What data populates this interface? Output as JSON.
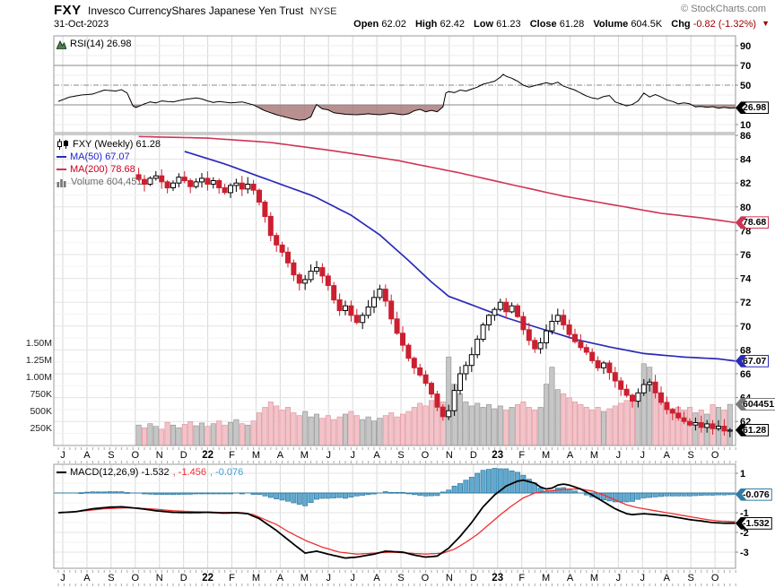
{
  "header": {
    "symbol": "FXY",
    "name": "Invesco CurrencyShares Japanese Yen Trust",
    "exchange": "NYSE",
    "copyright": "© StockCharts.com",
    "date": "31-Oct-2023",
    "open_label": "Open",
    "open": "62.02",
    "high_label": "High",
    "high": "62.42",
    "low_label": "Low",
    "low": "61.23",
    "close_label": "Close",
    "close": "61.28",
    "volume_label": "Volume",
    "volume": "604.5K",
    "chg_label": "Chg",
    "chg": "-0.82 (-1.32%)"
  },
  "legends": {
    "rsi": "RSI(14) 26.98",
    "price_main": "FXY (Weekly) 61.28",
    "ma50": "MA(50) 67.07",
    "ma200": "MA(200) 78.68",
    "volume": "Volume 604,451",
    "macd_main": "MACD(12,26,9) -1.532",
    "macd_signal": ", -1.456",
    "macd_hist": ", -0.076"
  },
  "axis": {
    "rsi_ticks": [
      90,
      70,
      50,
      10
    ],
    "price_ticks": [
      86,
      84,
      82,
      80,
      78,
      76,
      74,
      72,
      70,
      68,
      66,
      64,
      62
    ],
    "vol_ticks": [
      [
        "1.50M",
        1500
      ],
      [
        "1.25M",
        1250
      ],
      [
        "1.00M",
        1000
      ],
      [
        "750K",
        750
      ],
      [
        "500K",
        500
      ],
      [
        "250K",
        250
      ]
    ],
    "macd_ticks": [
      1,
      -1,
      -2,
      -3
    ],
    "months": [
      "J",
      "A",
      "S",
      "O",
      "N",
      "D",
      "22",
      "F",
      "M",
      "A",
      "M",
      "J",
      "J",
      "A",
      "S",
      "O",
      "N",
      "D",
      "23",
      "F",
      "M",
      "A",
      "M",
      "J",
      "J",
      "A",
      "S",
      "O"
    ],
    "bold_months": [
      "22",
      "23"
    ]
  },
  "tags": {
    "rsi": {
      "text": "26.98",
      "color": "#000000",
      "y_value": 26.98
    },
    "ma200": {
      "text": "78.68",
      "color": "#cf3354",
      "y_value": 78.68
    },
    "ma50": {
      "text": "67.07",
      "color": "#2a2ab8",
      "y_value": 67.07
    },
    "volume": {
      "text": "604451",
      "color": "#7a7a7a",
      "y_value_k": 604.451
    },
    "close": {
      "text": "61.28",
      "color": "#000000",
      "y_value": 61.28
    },
    "macd_hist": {
      "text": "-0.076",
      "color": "#2f7ba3",
      "y_value": -0.076
    },
    "macd_line": {
      "text": "-1.532",
      "color": "#000000",
      "y_value": -1.532
    }
  },
  "colors": {
    "down": "#cc1f2f",
    "up_fill": "#ffffff",
    "up_edge": "#000000",
    "ma50": "#2a2ab8",
    "ma200": "#cf3354",
    "vol_up": "#c6c6c6",
    "vol_up_edge": "#8f8f8f",
    "vol_down": "#f3c3c9",
    "vol_down_edge": "#d98f98",
    "hist": "#62a9d0",
    "hist_edge": "#2f7ba3",
    "signal": "#ee3030",
    "rsi_fill": "#a87474",
    "legend_blue": "#2222cc",
    "legend_red": "#cc0022",
    "legend_lightblue": "#3a9fd6",
    "grid": "#e3e3e3",
    "grid_faint": "#f3f3f3",
    "month_grid": "#d8d8d8",
    "panel_border": "#9a9a9a",
    "level_line": "#8a8a8a",
    "chg_red": "#a00000"
  },
  "chart_data": [
    {
      "type": "line",
      "title": "RSI(14)",
      "last": 26.98,
      "ylim": [
        0,
        100
      ],
      "levels": {
        "overbought": 70,
        "midline": 50,
        "oversold": 30
      },
      "points": [
        [
          0,
          33.5
        ],
        [
          2,
          38
        ],
        [
          4,
          40
        ],
        [
          6,
          41
        ],
        [
          8,
          45
        ],
        [
          10,
          44
        ],
        [
          11,
          45.5
        ],
        [
          12,
          42
        ],
        [
          13,
          29
        ],
        [
          13.6,
          27
        ],
        [
          14,
          28.5
        ],
        [
          15,
          31
        ],
        [
          16,
          33
        ],
        [
          17,
          32
        ],
        [
          18,
          34
        ],
        [
          20,
          33
        ],
        [
          22,
          35.5
        ],
        [
          24,
          37
        ],
        [
          25,
          36
        ],
        [
          26,
          34
        ],
        [
          27,
          32.5
        ],
        [
          28,
          33.5
        ],
        [
          30,
          32
        ],
        [
          32,
          33
        ],
        [
          33,
          31.5
        ],
        [
          34,
          30
        ],
        [
          35,
          27
        ],
        [
          36,
          24
        ],
        [
          38,
          20
        ],
        [
          40,
          17
        ],
        [
          41,
          15.5
        ],
        [
          42,
          14.5
        ],
        [
          43,
          15
        ],
        [
          44,
          18
        ],
        [
          44.6,
          26
        ],
        [
          45,
          30.5
        ],
        [
          45.5,
          28
        ],
        [
          46,
          26
        ],
        [
          47,
          25
        ],
        [
          48,
          22
        ],
        [
          50,
          20.5
        ],
        [
          52,
          20
        ],
        [
          54,
          21
        ],
        [
          56,
          20
        ],
        [
          58,
          21.5
        ],
        [
          60,
          20
        ],
        [
          61,
          21
        ],
        [
          62,
          24
        ],
        [
          63,
          25.5
        ],
        [
          64,
          23
        ],
        [
          65,
          24.5
        ],
        [
          66,
          23
        ],
        [
          67,
          28
        ],
        [
          67.5,
          42
        ],
        [
          68,
          43.5
        ],
        [
          69,
          42.5
        ],
        [
          70,
          45
        ],
        [
          71,
          44
        ],
        [
          72,
          46
        ],
        [
          73,
          48
        ],
        [
          74,
          51
        ],
        [
          75,
          52.5
        ],
        [
          76,
          54
        ],
        [
          77,
          58
        ],
        [
          77.5,
          61
        ],
        [
          78,
          59
        ],
        [
          79,
          57
        ],
        [
          80,
          54
        ],
        [
          81,
          50
        ],
        [
          82,
          48
        ],
        [
          84,
          51
        ],
        [
          85,
          52.5
        ],
        [
          86,
          51
        ],
        [
          87,
          53
        ],
        [
          88,
          49
        ],
        [
          90,
          45
        ],
        [
          91,
          42
        ],
        [
          92,
          39
        ],
        [
          93,
          37
        ],
        [
          94,
          36
        ],
        [
          95,
          38.5
        ],
        [
          96,
          39.5
        ],
        [
          97,
          33
        ],
        [
          98,
          31
        ],
        [
          99,
          29
        ],
        [
          100,
          30.5
        ],
        [
          101,
          34
        ],
        [
          102,
          42
        ],
        [
          103,
          38
        ],
        [
          104,
          40.5
        ],
        [
          105,
          38
        ],
        [
          106,
          35
        ],
        [
          107,
          33.5
        ],
        [
          108,
          31
        ],
        [
          109,
          32
        ],
        [
          110,
          31
        ],
        [
          111,
          28
        ],
        [
          112,
          28.5
        ],
        [
          113,
          27.5
        ],
        [
          114,
          28.2
        ],
        [
          115,
          26.5
        ],
        [
          116,
          27.5
        ],
        [
          117,
          26.5
        ],
        [
          118,
          26.98
        ]
      ]
    },
    {
      "type": "candlestick",
      "title": "FXY Weekly",
      "ylim": [
        60,
        87
      ],
      "last_close": 61.28,
      "ma50_last": 67.07,
      "ma200_last": 78.68,
      "volume_last": 604451,
      "first_week_index": 14,
      "weekly_closes": [
        82.3,
        81.9,
        82.4,
        82.6,
        82.1,
        81.6,
        82.0,
        82.5,
        82.2,
        81.7,
        82.1,
        82.4,
        81.9,
        82.2,
        81.6,
        81.2,
        81.8,
        82.0,
        81.5,
        81.9,
        81.4,
        80.4,
        79.2,
        77.6,
        76.8,
        76.2,
        75.3,
        74.3,
        73.6,
        73.9,
        74.6,
        74.9,
        74.2,
        73.4,
        72.2,
        71.3,
        71.7,
        70.9,
        70.3,
        70.9,
        71.6,
        72.4,
        73.1,
        72.1,
        70.6,
        69.4,
        68.4,
        67.3,
        66.5,
        65.9,
        65.2,
        64.3,
        63.2,
        62.4,
        62.9,
        64.6,
        66.0,
        66.7,
        67.6,
        68.9,
        70.1,
        70.9,
        71.4,
        72.0,
        71.2,
        71.7,
        70.8,
        69.7,
        68.8,
        68.1,
        68.6,
        69.6,
        70.4,
        70.9,
        70.1,
        69.3,
        68.7,
        68.2,
        67.8,
        67.1,
        66.5,
        66.9,
        66.1,
        65.4,
        64.7,
        64.2,
        63.7,
        64.4,
        65.1,
        65.3,
        64.4,
        63.6,
        63.0,
        62.7,
        62.3,
        62.0,
        61.7,
        61.9,
        61.5,
        61.8,
        61.4,
        61.6,
        61.2,
        61.28
      ],
      "volumes_k": [
        300,
        260,
        320,
        280,
        240,
        340,
        300,
        260,
        310,
        350,
        290,
        330,
        280,
        320,
        360,
        300,
        340,
        380,
        320,
        300,
        360,
        480,
        560,
        640,
        580,
        520,
        560,
        480,
        440,
        500,
        420,
        460,
        400,
        440,
        380,
        420,
        460,
        500,
        440,
        380,
        420,
        360,
        400,
        440,
        480,
        420,
        460,
        500,
        560,
        620,
        580,
        660,
        720,
        640,
        1300,
        900,
        760,
        640,
        580,
        620,
        560,
        600,
        540,
        580,
        520,
        560,
        600,
        640,
        560,
        520,
        560,
        900,
        1150,
        820,
        760,
        700,
        640,
        600,
        560,
        520,
        560,
        500,
        540,
        580,
        620,
        660,
        700,
        750,
        1200,
        1150,
        800,
        640,
        580,
        540,
        560,
        520,
        560,
        480,
        520,
        460,
        600,
        560,
        520,
        604
      ],
      "ma50": [
        [
          22,
          84.65
        ],
        [
          29,
          83.6
        ],
        [
          37,
          82.2
        ],
        [
          44.5,
          80.9
        ],
        [
          51,
          79.3
        ],
        [
          56,
          77.65
        ],
        [
          61,
          75.5
        ],
        [
          65,
          73.7
        ],
        [
          68,
          72.5
        ],
        [
          73,
          71.6
        ],
        [
          78,
          70.7
        ],
        [
          84,
          69.8
        ],
        [
          90,
          68.9
        ],
        [
          96,
          68.25
        ],
        [
          102,
          67.7
        ],
        [
          109,
          67.4
        ],
        [
          115,
          67.25
        ],
        [
          118,
          67.07
        ]
      ],
      "ma200": [
        [
          14,
          85.9
        ],
        [
          26,
          85.77
        ],
        [
          37,
          85.4
        ],
        [
          48,
          84.7
        ],
        [
          59,
          83.9
        ],
        [
          70,
          82.84
        ],
        [
          79,
          81.86
        ],
        [
          88,
          80.9
        ],
        [
          98,
          80.06
        ],
        [
          105,
          79.46
        ],
        [
          112,
          79.08
        ],
        [
          118,
          78.68
        ]
      ]
    },
    {
      "type": "line+histogram",
      "title": "MACD(12,26,9)",
      "ylim": [
        -3.8,
        1.5
      ],
      "last": {
        "macd": -1.532,
        "signal": -1.456,
        "hist": -0.076
      },
      "macd": [
        [
          0,
          -1.0
        ],
        [
          3,
          -0.95
        ],
        [
          6,
          -0.8
        ],
        [
          9,
          -0.72
        ],
        [
          11,
          -0.7
        ],
        [
          14,
          -0.78
        ],
        [
          17,
          -0.9
        ],
        [
          20,
          -0.98
        ],
        [
          23,
          -1.0
        ],
        [
          26,
          -0.98
        ],
        [
          29,
          -1.02
        ],
        [
          31,
          -1.0
        ],
        [
          33,
          -1.05
        ],
        [
          35,
          -1.3
        ],
        [
          38,
          -1.9
        ],
        [
          41,
          -2.6
        ],
        [
          43,
          -3.05
        ],
        [
          45,
          -2.95
        ],
        [
          47,
          -3.1
        ],
        [
          50,
          -3.3
        ],
        [
          52,
          -3.25
        ],
        [
          55,
          -3.1
        ],
        [
          57,
          -2.95
        ],
        [
          60,
          -3.0
        ],
        [
          62,
          -3.15
        ],
        [
          64,
          -3.25
        ],
        [
          66,
          -3.2
        ],
        [
          68,
          -2.8
        ],
        [
          70,
          -2.2
        ],
        [
          72,
          -1.5
        ],
        [
          74,
          -0.7
        ],
        [
          76,
          -0.1
        ],
        [
          78,
          0.35
        ],
        [
          80,
          0.6
        ],
        [
          81,
          0.65
        ],
        [
          83,
          0.5
        ],
        [
          84,
          0.3
        ],
        [
          85,
          0.2
        ],
        [
          86,
          0.25
        ],
        [
          87,
          0.4
        ],
        [
          88,
          0.45
        ],
        [
          89,
          0.4
        ],
        [
          91,
          0.2
        ],
        [
          93,
          -0.1
        ],
        [
          95,
          -0.45
        ],
        [
          97,
          -0.8
        ],
        [
          99,
          -1.05
        ],
        [
          100,
          -1.1
        ],
        [
          102,
          -1.05
        ],
        [
          104,
          -1.1
        ],
        [
          106,
          -1.15
        ],
        [
          108,
          -1.25
        ],
        [
          110,
          -1.35
        ],
        [
          112,
          -1.42
        ],
        [
          114,
          -1.5
        ],
        [
          116,
          -1.53
        ],
        [
          118,
          -1.532
        ]
      ],
      "signal": [
        [
          0,
          -1.0
        ],
        [
          4,
          -0.92
        ],
        [
          8,
          -0.8
        ],
        [
          12,
          -0.75
        ],
        [
          16,
          -0.8
        ],
        [
          20,
          -0.9
        ],
        [
          24,
          -0.95
        ],
        [
          28,
          -0.98
        ],
        [
          32,
          -1.0
        ],
        [
          34,
          -1.1
        ],
        [
          36,
          -1.35
        ],
        [
          38,
          -1.6
        ],
        [
          40,
          -1.95
        ],
        [
          43,
          -2.4
        ],
        [
          46,
          -2.75
        ],
        [
          49,
          -3.0
        ],
        [
          52,
          -3.1
        ],
        [
          55,
          -3.05
        ],
        [
          58,
          -3.0
        ],
        [
          61,
          -3.05
        ],
        [
          64,
          -3.1
        ],
        [
          67,
          -3.05
        ],
        [
          69,
          -2.85
        ],
        [
          71,
          -2.5
        ],
        [
          73,
          -2.1
        ],
        [
          75,
          -1.6
        ],
        [
          77,
          -1.1
        ],
        [
          79,
          -0.65
        ],
        [
          81,
          -0.25
        ],
        [
          83,
          0.0
        ],
        [
          85,
          0.1
        ],
        [
          87,
          0.15
        ],
        [
          89,
          0.2
        ],
        [
          91,
          0.2
        ],
        [
          93,
          0.1
        ],
        [
          95,
          -0.1
        ],
        [
          97,
          -0.35
        ],
        [
          99,
          -0.6
        ],
        [
          101,
          -0.75
        ],
        [
          103,
          -0.85
        ],
        [
          105,
          -0.95
        ],
        [
          107,
          -1.05
        ],
        [
          109,
          -1.15
        ],
        [
          111,
          -1.25
        ],
        [
          113,
          -1.35
        ],
        [
          115,
          -1.42
        ],
        [
          118,
          -1.456
        ]
      ]
    }
  ]
}
